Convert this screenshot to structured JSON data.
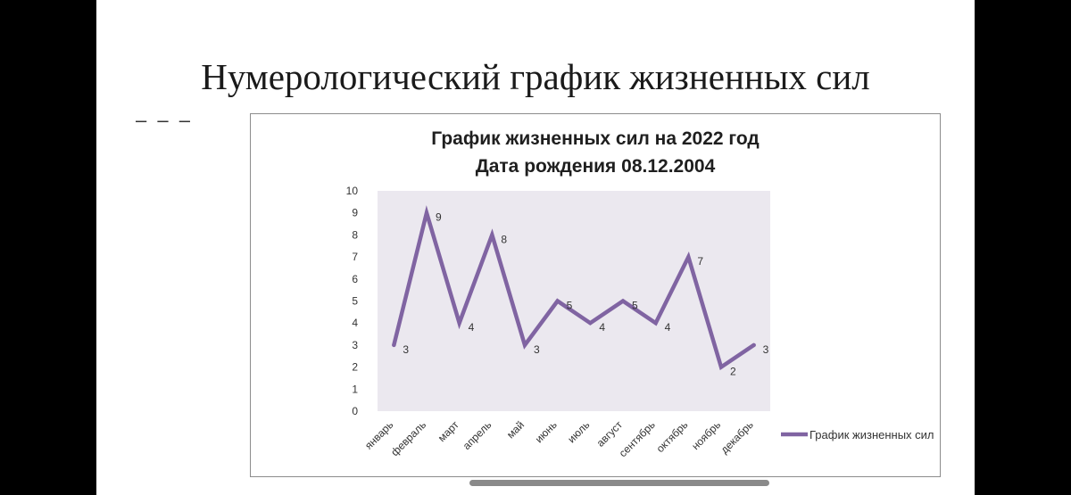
{
  "slide": {
    "title": "Нумерологический график жизненных сил",
    "dash_mark": "– – –"
  },
  "colors": {
    "series": "#8064a2",
    "plot_background": "#ebe8ef"
  },
  "chart_data": {
    "type": "line",
    "title_lines": [
      "График жизненных сил на 2022 год",
      "Дата рождения 08.12.2004"
    ],
    "categories": [
      "январь",
      "февраль",
      "март",
      "апрель",
      "май",
      "июнь",
      "июль",
      "август",
      "сентябрь",
      "октябрь",
      "ноябрь",
      "декабрь"
    ],
    "series": [
      {
        "name": "График жизненных сил",
        "values": [
          3,
          9,
          4,
          8,
          3,
          5,
          4,
          5,
          4,
          7,
          2,
          3
        ]
      }
    ],
    "ylim": [
      0,
      10
    ],
    "yticks": [
      0,
      1,
      2,
      3,
      4,
      5,
      6,
      7,
      8,
      9,
      10
    ],
    "grid": false,
    "data_labels": true,
    "legend_position": "right"
  }
}
